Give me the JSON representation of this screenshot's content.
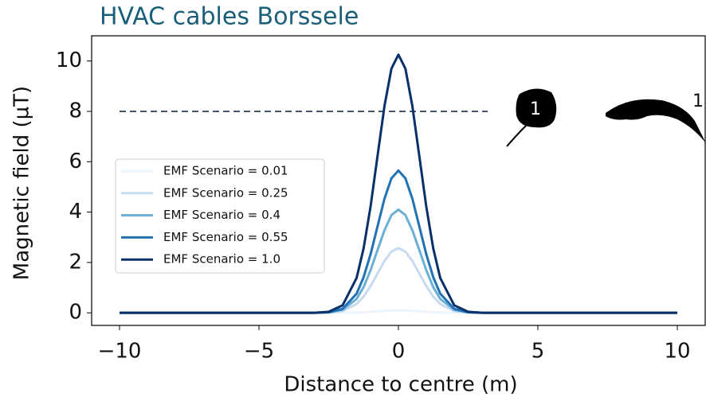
{
  "chart_data": {
    "type": "line",
    "title": "HVAC cables Borssele",
    "xlabel": "Distance to centre (m)",
    "ylabel": "Magnetic field (µT)",
    "x": [
      -10,
      -3,
      -2.5,
      -2,
      -1.5,
      -1.25,
      -1,
      -0.75,
      -0.5,
      -0.25,
      0,
      0.25,
      0.5,
      0.75,
      1,
      1.25,
      1.5,
      2,
      2.5,
      3,
      10
    ],
    "series": [
      {
        "name": "EMF Scenario = 0.01",
        "color": "#eef4fb",
        "values": [
          0,
          0,
          0,
          0,
          0.01,
          0.02,
          0.04,
          0.06,
          0.08,
          0.09,
          0.1,
          0.09,
          0.08,
          0.06,
          0.04,
          0.02,
          0.01,
          0,
          0,
          0,
          0
        ]
      },
      {
        "name": "EMF Scenario = 0.25",
        "color": "#c6dbef",
        "values": [
          0,
          0,
          0.01,
          0.07,
          0.35,
          0.64,
          1.06,
          1.56,
          2.06,
          2.43,
          2.57,
          2.43,
          2.06,
          1.56,
          1.06,
          0.64,
          0.35,
          0.07,
          0.01,
          0,
          0
        ]
      },
      {
        "name": "EMF Scenario = 0.4",
        "color": "#6baed6",
        "values": [
          0,
          0,
          0.02,
          0.12,
          0.55,
          1.02,
          1.69,
          2.49,
          3.28,
          3.88,
          4.1,
          3.88,
          3.28,
          2.49,
          1.69,
          1.02,
          0.55,
          0.12,
          0.02,
          0,
          0
        ]
      },
      {
        "name": "EMF Scenario = 0.55",
        "color": "#2171b5",
        "values": [
          0,
          0,
          0.02,
          0.16,
          0.76,
          1.41,
          2.32,
          3.43,
          4.53,
          5.34,
          5.65,
          5.34,
          4.53,
          3.43,
          2.32,
          1.41,
          0.76,
          0.16,
          0.02,
          0,
          0
        ]
      },
      {
        "name": "EMF Scenario = 1.0",
        "color": "#08306b",
        "values": [
          0,
          0,
          0.04,
          0.3,
          1.38,
          2.55,
          4.21,
          6.22,
          8.21,
          9.7,
          10.25,
          9.7,
          8.21,
          6.22,
          4.21,
          2.55,
          1.38,
          0.3,
          0.04,
          0,
          0
        ]
      }
    ],
    "xlim": [
      -11,
      11
    ],
    "ylim": [
      -0.5,
      11
    ],
    "xticks": [
      {
        "value": -10,
        "label": "−10"
      },
      {
        "value": -5,
        "label": "−5"
      },
      0,
      5,
      10
    ],
    "yticks": [
      0,
      2,
      4,
      6,
      8,
      10
    ],
    "hline": {
      "y": 8,
      "xmin": -10,
      "xmax": 3.2,
      "color": "#44546a"
    },
    "icons": [
      {
        "label": "1"
      },
      {
        "label": "1"
      }
    ]
  }
}
